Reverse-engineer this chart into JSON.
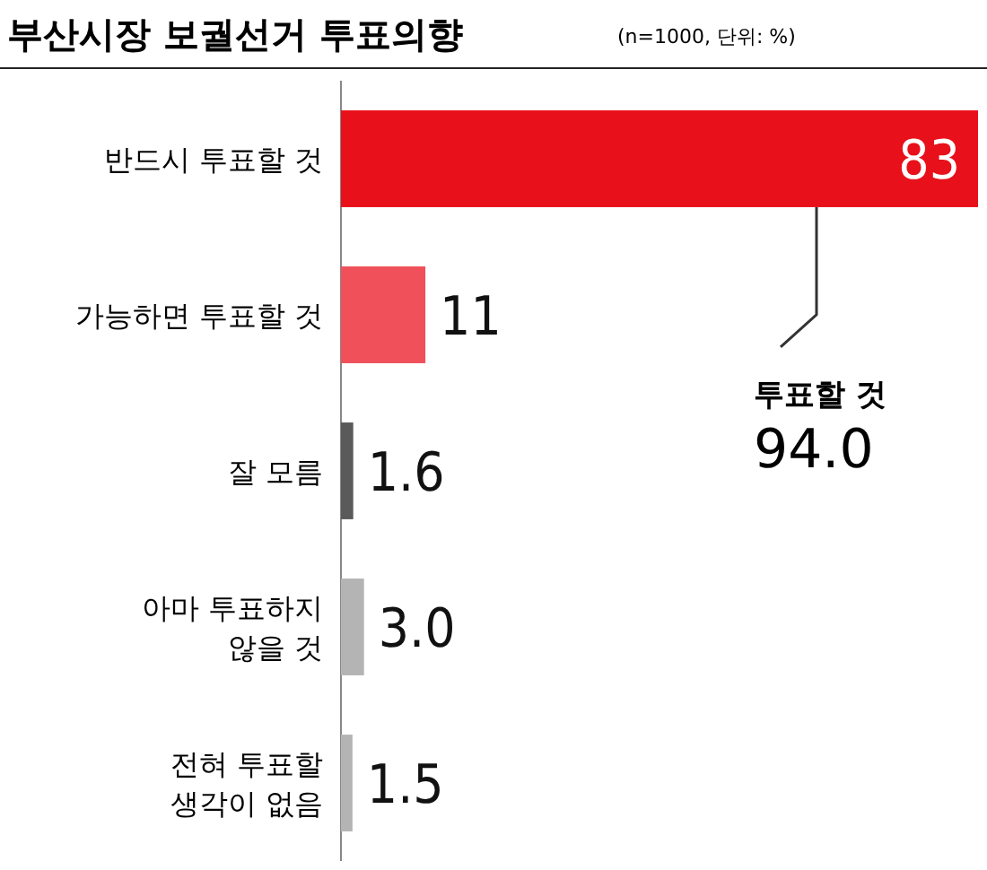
{
  "chart_data": {
    "type": "bar",
    "orientation": "horizontal",
    "title": "부산시장 보궐선거 투표의향",
    "subtitle": "(n=1000, 단위: %)",
    "categories": [
      "반드시 투표할 것",
      "가능하면 투표할 것",
      "잘 모름",
      "아마 투표하지 않을 것",
      "전혀 투표할 생각이 없음"
    ],
    "values": [
      83,
      11,
      1.6,
      3.0,
      1.5
    ],
    "colors": [
      "#e8101a",
      "#f0505a",
      "#5a5a5a",
      "#b4b4b4",
      "#b4b4b4"
    ],
    "value_labels": [
      "83",
      "11",
      "1.6",
      "3.0",
      "1.5"
    ],
    "annotations": [
      "투표할 것",
      "94.0"
    ]
  }
}
